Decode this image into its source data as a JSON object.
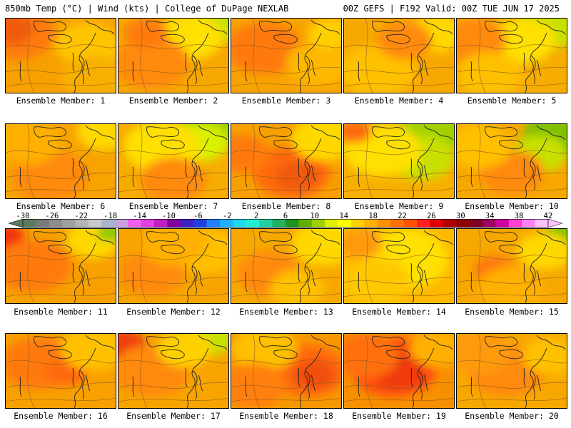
{
  "header": {
    "left_title": "850mb Temp (°C) | Wind (kts) | College of DuPage NEXLAB",
    "right_title": "00Z GEFS | F192 Valid: 00Z TUE JUN 17 2025"
  },
  "colorbar": {
    "labels": [
      "-30",
      "-26",
      "-22",
      "-18",
      "-14",
      "-10",
      "-6",
      "-2",
      "2",
      "6",
      "10",
      "14",
      "18",
      "22",
      "26",
      "30",
      "34",
      "38",
      "42"
    ],
    "colors": [
      "#5c7a60",
      "#7a7a7a",
      "#8c8c8c",
      "#a0a0a0",
      "#b4b4b4",
      "#c8c8c8",
      "#a8b4cc",
      "#c8a0e0",
      "#f060f0",
      "#e040e0",
      "#c020c0",
      "#8000a0",
      "#4020c0",
      "#2040e0",
      "#2080ff",
      "#20b0ff",
      "#20d8f0",
      "#20f0d0",
      "#20d0a0",
      "#20b060",
      "#209020",
      "#60b000",
      "#a0d000",
      "#e0f000",
      "#ffff00",
      "#ffd000",
      "#ffb000",
      "#ff9000",
      "#ff7000",
      "#ff5000",
      "#ff2020",
      "#e00000",
      "#b00000",
      "#900000",
      "#800020",
      "#a00060",
      "#d000a0",
      "#ff40d0",
      "#ff80f0",
      "#ffc0ff"
    ]
  },
  "panels": [
    {
      "label": "Ensemble Member: 1",
      "base": "#f7a000",
      "blobs": [
        [
          "#ff7a10",
          0.1,
          0.2,
          0.35
        ],
        [
          "#f05a10",
          0.05,
          0.15,
          0.2
        ],
        [
          "#ffc400",
          0.75,
          0.35,
          0.3
        ],
        [
          "#f7b000",
          0.8,
          0.8,
          0.3
        ]
      ]
    },
    {
      "label": "Ensemble Member: 2",
      "base": "#f7a800",
      "blobs": [
        [
          "#c8e000",
          0.85,
          0.1,
          0.25
        ],
        [
          "#ffe000",
          0.65,
          0.25,
          0.3
        ],
        [
          "#ff8a10",
          0.3,
          0.6,
          0.35
        ],
        [
          "#ff7a10",
          0.25,
          0.2,
          0.2
        ]
      ]
    },
    {
      "label": "Ensemble Member: 3",
      "base": "#f7a400",
      "blobs": [
        [
          "#ff7a10",
          0.3,
          0.4,
          0.35
        ],
        [
          "#ffb800",
          0.8,
          0.6,
          0.3
        ],
        [
          "#ffd000",
          0.9,
          0.2,
          0.2
        ]
      ]
    },
    {
      "label": "Ensemble Member: 4",
      "base": "#f7a800",
      "blobs": [
        [
          "#ffc000",
          0.3,
          0.7,
          0.35
        ],
        [
          "#ffd800",
          0.85,
          0.2,
          0.25
        ],
        [
          "#ff8a10",
          0.55,
          0.3,
          0.25
        ]
      ]
    },
    {
      "label": "Ensemble Member: 5",
      "base": "#f7ac00",
      "blobs": [
        [
          "#c8e000",
          0.85,
          0.1,
          0.3
        ],
        [
          "#ffe000",
          0.6,
          0.3,
          0.3
        ],
        [
          "#ff8a10",
          0.15,
          0.3,
          0.3
        ],
        [
          "#ffc000",
          0.3,
          0.75,
          0.3
        ]
      ]
    },
    {
      "label": "Ensemble Member: 6",
      "base": "#f7a400",
      "blobs": [
        [
          "#ffd800",
          0.9,
          0.1,
          0.25
        ],
        [
          "#ff8a10",
          0.4,
          0.7,
          0.35
        ],
        [
          "#ffb000",
          0.2,
          0.25,
          0.3
        ]
      ]
    },
    {
      "label": "Ensemble Member: 7",
      "base": "#f7ac00",
      "blobs": [
        [
          "#a0d000",
          0.85,
          0.05,
          0.3
        ],
        [
          "#d8f000",
          0.75,
          0.25,
          0.25
        ],
        [
          "#ffe000",
          0.4,
          0.3,
          0.35
        ],
        [
          "#ff8a10",
          0.5,
          0.75,
          0.3
        ]
      ]
    },
    {
      "label": "Ensemble Member: 8",
      "base": "#f7a000",
      "blobs": [
        [
          "#ff6a10",
          0.55,
          0.65,
          0.35
        ],
        [
          "#f05a10",
          0.6,
          0.7,
          0.2
        ],
        [
          "#ffd800",
          0.85,
          0.2,
          0.3
        ],
        [
          "#ff7a10",
          0.1,
          0.4,
          0.25
        ]
      ]
    },
    {
      "label": "Ensemble Member: 9",
      "base": "#f7b000",
      "blobs": [
        [
          "#a0d000",
          0.8,
          0.1,
          0.3
        ],
        [
          "#c8e000",
          0.7,
          0.45,
          0.3
        ],
        [
          "#ffe000",
          0.35,
          0.35,
          0.35
        ],
        [
          "#ff6a10",
          0.1,
          0.1,
          0.15
        ]
      ]
    },
    {
      "label": "Ensemble Member: 10",
      "base": "#f7a800",
      "blobs": [
        [
          "#80c000",
          0.9,
          0.15,
          0.3
        ],
        [
          "#c8e000",
          0.75,
          0.4,
          0.25
        ],
        [
          "#ff8a10",
          0.5,
          0.65,
          0.3
        ],
        [
          "#ffc000",
          0.2,
          0.3,
          0.3
        ]
      ]
    },
    {
      "label": "Ensemble Member: 11",
      "base": "#f7a000",
      "blobs": [
        [
          "#f03010",
          0.02,
          0.1,
          0.15
        ],
        [
          "#ff7a10",
          0.25,
          0.5,
          0.35
        ],
        [
          "#ffd800",
          0.8,
          0.15,
          0.25
        ],
        [
          "#90c800",
          0.95,
          0.05,
          0.12
        ]
      ]
    },
    {
      "label": "Ensemble Member: 12",
      "base": "#f7a400",
      "blobs": [
        [
          "#ffc000",
          0.8,
          0.3,
          0.3
        ],
        [
          "#ff8a10",
          0.3,
          0.6,
          0.3
        ],
        [
          "#ffb000",
          0.5,
          0.2,
          0.3
        ]
      ]
    },
    {
      "label": "Ensemble Member: 13",
      "base": "#f7a800",
      "blobs": [
        [
          "#ffd800",
          0.85,
          0.2,
          0.3
        ],
        [
          "#ff8a10",
          0.35,
          0.6,
          0.3
        ],
        [
          "#ffc000",
          0.6,
          0.8,
          0.25
        ]
      ]
    },
    {
      "label": "Ensemble Member: 14",
      "base": "#ffb800",
      "blobs": [
        [
          "#ffe000",
          0.55,
          0.4,
          0.4
        ],
        [
          "#ffc800",
          0.3,
          0.7,
          0.3
        ],
        [
          "#ff9a10",
          0.15,
          0.2,
          0.2
        ]
      ]
    },
    {
      "label": "Ensemble Member: 15",
      "base": "#f7a800",
      "blobs": [
        [
          "#80c000",
          0.95,
          0.05,
          0.15
        ],
        [
          "#ffd800",
          0.8,
          0.3,
          0.25
        ],
        [
          "#ff7a10",
          0.35,
          0.55,
          0.2
        ],
        [
          "#ffb000",
          0.5,
          0.8,
          0.3
        ]
      ]
    },
    {
      "label": "Ensemble Member: 16",
      "base": "#f7a000",
      "blobs": [
        [
          "#ff7a10",
          0.3,
          0.4,
          0.35
        ],
        [
          "#ff6a10",
          0.55,
          0.5,
          0.2
        ],
        [
          "#ffc000",
          0.8,
          0.2,
          0.3
        ]
      ]
    },
    {
      "label": "Ensemble Member: 17",
      "base": "#f7a400",
      "blobs": [
        [
          "#f04010",
          0.05,
          0.15,
          0.2
        ],
        [
          "#c8e000",
          0.8,
          0.05,
          0.25
        ],
        [
          "#ff8a10",
          0.3,
          0.5,
          0.35
        ],
        [
          "#ffd000",
          0.6,
          0.2,
          0.25
        ]
      ]
    },
    {
      "label": "Ensemble Member: 18",
      "base": "#f79800",
      "blobs": [
        [
          "#ff6a10",
          0.7,
          0.5,
          0.35
        ],
        [
          "#f05010",
          0.75,
          0.55,
          0.2
        ],
        [
          "#ffc000",
          0.3,
          0.2,
          0.3
        ],
        [
          "#ff8010",
          0.2,
          0.7,
          0.3
        ]
      ]
    },
    {
      "label": "Ensemble Member: 19",
      "base": "#f79000",
      "blobs": [
        [
          "#ff5010",
          0.45,
          0.45,
          0.4
        ],
        [
          "#f03a10",
          0.5,
          0.5,
          0.25
        ],
        [
          "#ff7010",
          0.2,
          0.3,
          0.3
        ],
        [
          "#ffb000",
          0.85,
          0.2,
          0.25
        ]
      ]
    },
    {
      "label": "Ensemble Member: 20",
      "base": "#f7a800",
      "blobs": [
        [
          "#ff8a10",
          0.45,
          0.5,
          0.35
        ],
        [
          "#ffc000",
          0.85,
          0.3,
          0.25
        ],
        [
          "#ff9a10",
          0.2,
          0.25,
          0.3
        ]
      ]
    }
  ]
}
